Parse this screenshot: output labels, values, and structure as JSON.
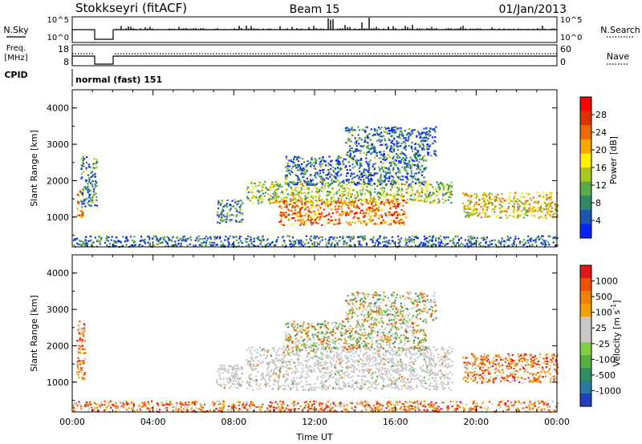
{
  "header": {
    "title": "Stokkseyri (fitACF)",
    "beam": "Beam 15",
    "date": "01/Jan/2013"
  },
  "panels": {
    "nsky": {
      "label": "N.Sky",
      "right_label": "N.Search",
      "ticks_left": [
        "10^5",
        "10^0"
      ],
      "ticks_right": [
        "10^5",
        "10^0"
      ]
    },
    "freq": {
      "label_line1": "Freq.",
      "label_line2": "[MHz]",
      "right_label": "Nave",
      "ticks_left": [
        "18",
        "8"
      ],
      "ticks_right": [
        "60",
        "0"
      ]
    },
    "cpid": {
      "label": "CPID",
      "program": "normal (fast) 151"
    }
  },
  "chart_data": [
    {
      "type": "heatmap",
      "title": "",
      "quantity": "Power",
      "xlabel": "",
      "ylabel": "Slant Range [km]",
      "xlim_hours": [
        0,
        24
      ],
      "ylim": [
        180,
        4500
      ],
      "yticks": [
        1000,
        2000,
        3000,
        4000
      ],
      "colorbar": {
        "label": "Power [dB]",
        "ticks": [
          "4",
          "8",
          "12",
          "16",
          "20",
          "24",
          "28"
        ],
        "colors": [
          "#0a24ff",
          "#1c56b4",
          "#2e8a64",
          "#5aaa46",
          "#a8c81e",
          "#fff000",
          "#f7a800",
          "#f06800",
          "#e03000",
          "#ff0000"
        ]
      },
      "regions": [
        {
          "x0": 0.2,
          "x1": 0.5,
          "y0": 1000,
          "y1": 1800,
          "level": 0.7
        },
        {
          "x0": 0.4,
          "x1": 1.2,
          "y0": 1300,
          "y1": 2700,
          "level": 0.25
        },
        {
          "x0": 7.1,
          "x1": 8.4,
          "y0": 850,
          "y1": 1500,
          "level": 0.25
        },
        {
          "x0": 8.6,
          "x1": 18.8,
          "y0": 1400,
          "y1": 2000,
          "level": 0.45
        },
        {
          "x0": 10.2,
          "x1": 16.5,
          "y0": 800,
          "y1": 1500,
          "level": 0.75
        },
        {
          "x0": 10.5,
          "x1": 17.5,
          "y0": 1900,
          "y1": 2700,
          "level": 0.2
        },
        {
          "x0": 13.5,
          "x1": 18.0,
          "y0": 2700,
          "y1": 3500,
          "level": 0.18
        },
        {
          "x0": 19.3,
          "x1": 24.0,
          "y0": 1000,
          "y1": 1700,
          "level": 0.55
        },
        {
          "x0": 0.0,
          "x1": 24.0,
          "y0": 200,
          "y1": 500,
          "level": 0.2
        }
      ]
    },
    {
      "type": "heatmap",
      "title": "",
      "quantity": "Velocity",
      "xlabel": "Time UT",
      "ylabel": "Slant Range [km]",
      "xlim_hours": [
        0,
        24
      ],
      "ylim": [
        180,
        4500
      ],
      "xticks": [
        "00:00",
        "04:00",
        "08:00",
        "12:00",
        "16:00",
        "20:00",
        "00:00"
      ],
      "yticks": [
        1000,
        2000,
        3000,
        4000
      ],
      "colorbar": {
        "label": "Velocity [m s^-1]",
        "ticks": [
          "1000",
          "500",
          "100",
          "25",
          "-25",
          "-100",
          "-500",
          "-1000"
        ],
        "colors": [
          "#2040c0",
          "#2a7aa0",
          "#2e9060",
          "#54b040",
          "#80d040",
          "#c8c8c8",
          "#c8c8c8",
          "#f0a000",
          "#f08000",
          "#f05000",
          "#e01818"
        ]
      },
      "regions": [
        {
          "x0": 0.2,
          "x1": 0.6,
          "y0": 1100,
          "y1": 2700,
          "kind": "neg"
        },
        {
          "x0": 7.1,
          "x1": 8.4,
          "y0": 850,
          "y1": 1500,
          "kind": "gray"
        },
        {
          "x0": 8.6,
          "x1": 18.8,
          "y0": 800,
          "y1": 2000,
          "kind": "gray"
        },
        {
          "x0": 10.5,
          "x1": 17.5,
          "y0": 1900,
          "y1": 2700,
          "kind": "mixed"
        },
        {
          "x0": 13.5,
          "x1": 18.0,
          "y0": 2700,
          "y1": 3500,
          "kind": "mixed"
        },
        {
          "x0": 19.3,
          "x1": 24.0,
          "y0": 1000,
          "y1": 1800,
          "kind": "neg"
        },
        {
          "x0": 0.0,
          "x1": 24.0,
          "y0": 200,
          "y1": 500,
          "kind": "neg"
        }
      ]
    }
  ]
}
